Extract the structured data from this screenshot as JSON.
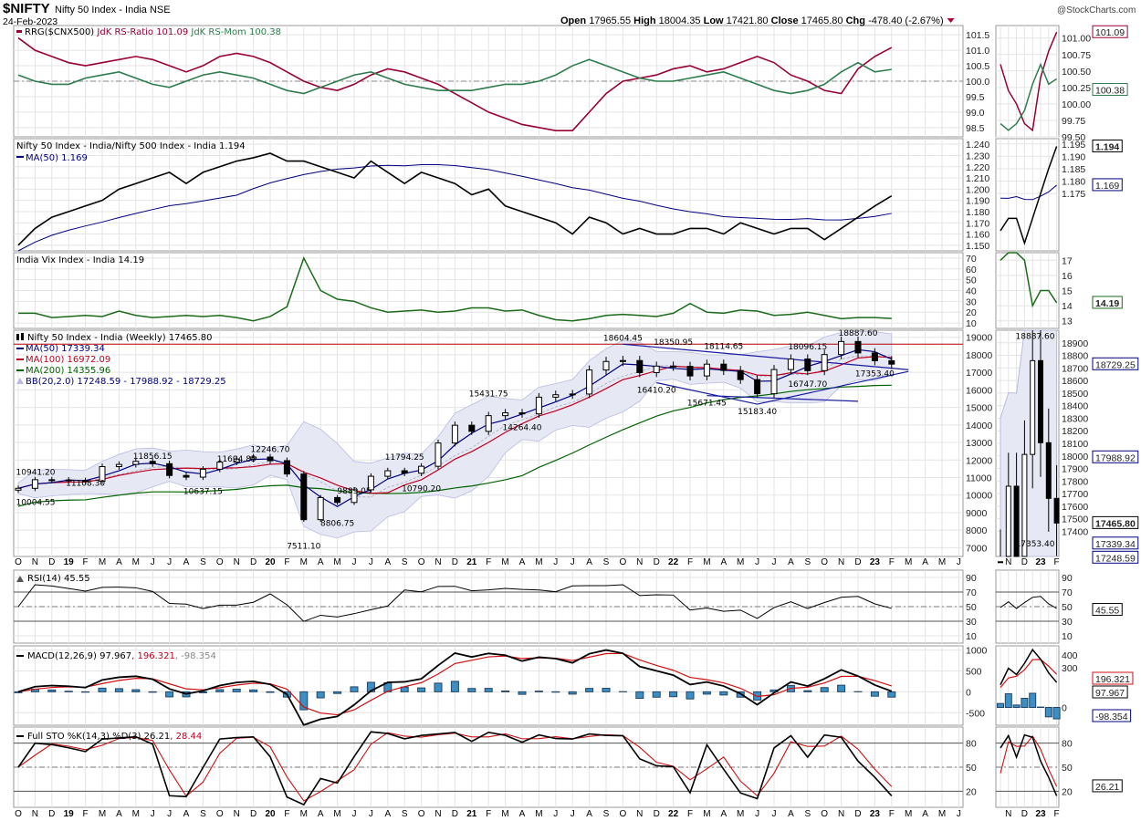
{
  "header": {
    "symbol": "$NIFTY",
    "name": "Nifty 50 Index - India NSE",
    "date": "24-Feb-2023",
    "watermark": "@StockCharts.com",
    "ohlc": {
      "open_label": "Open",
      "open": "17965.55",
      "high_label": "High",
      "high": "18004.35",
      "low_label": "Low",
      "low": "17421.80",
      "close_label": "Close",
      "close": "17465.80",
      "chg_label": "Chg",
      "chg": "-478.40 (-2.67%)"
    },
    "chg_icon": "down-triangle-icon"
  },
  "colors": {
    "price": "#000000",
    "ma50": "#000080",
    "ma100": "#c00020",
    "ma200": "#006400",
    "bb_fill": "#e6e8f4",
    "rrg_ratio": "#990033",
    "rrg_mom": "#2e7d4f",
    "vix": "#1a6b1a",
    "macd_hist": "#3b8fc4",
    "signal": "#d01010",
    "resistance": "#b00000",
    "trendline": "#1a1aa0"
  },
  "chart_data": [
    {
      "type": "line",
      "panel": "rrg",
      "legend": {
        "prefix": "RRG($CNX500)",
        "ratio": "JdK RS-Ratio 101.09",
        "mom": "JdK RS-Mom 100.38"
      },
      "ylim": [
        98.2,
        101.8
      ],
      "ticks": [
        "98.5",
        "99.0",
        "99.5",
        "100.0",
        "100.5",
        "101.0",
        "101.5"
      ],
      "mini_ticks": [
        "99.50",
        "99.75",
        "100.00",
        "100.25",
        "100.50",
        "100.75",
        "101.00"
      ],
      "tags": {
        "ratio": "101.09",
        "mom": "100.38"
      },
      "series": [
        {
          "name": "JdK RS-Ratio",
          "values": [
            101.4,
            101.0,
            100.8,
            100.6,
            100.5,
            100.6,
            100.7,
            100.8,
            100.7,
            100.5,
            100.3,
            100.5,
            100.8,
            100.9,
            100.8,
            100.6,
            100.3,
            100.0,
            99.8,
            99.7,
            99.9,
            100.2,
            100.4,
            100.3,
            100.1,
            99.9,
            99.6,
            99.3,
            99.0,
            98.8,
            98.6,
            98.5,
            98.4,
            98.4,
            99.0,
            99.6,
            100.0,
            100.1,
            100.2,
            100.4,
            100.5,
            100.3,
            100.4,
            100.6,
            100.8,
            100.6,
            100.2,
            100.0,
            99.7,
            99.6,
            100.4,
            100.8,
            101.09
          ]
        },
        {
          "name": "JdK RS-Mom",
          "values": [
            100.2,
            100.0,
            99.9,
            99.9,
            100.1,
            100.2,
            100.3,
            100.1,
            99.9,
            99.8,
            100.0,
            100.2,
            100.3,
            100.2,
            100.1,
            99.9,
            99.7,
            99.6,
            99.8,
            100.0,
            100.2,
            100.3,
            100.1,
            99.9,
            99.8,
            99.7,
            99.7,
            99.7,
            99.8,
            99.9,
            99.9,
            100.0,
            100.2,
            100.5,
            100.7,
            100.5,
            100.3,
            100.1,
            100.0,
            100.0,
            100.1,
            100.2,
            100.3,
            100.1,
            99.9,
            99.7,
            99.6,
            99.7,
            99.9,
            100.3,
            100.6,
            100.3,
            100.38
          ]
        }
      ]
    },
    {
      "type": "line",
      "panel": "ratio",
      "legend": {
        "main": "Nifty 50 Index - India/Nifty 500 Index - India 1.194",
        "ma": "MA(50) 1.169"
      },
      "ylim": [
        1.145,
        1.245
      ],
      "ticks": [
        "1.150",
        "1.160",
        "1.170",
        "1.180",
        "1.190",
        "1.200",
        "1.210",
        "1.220",
        "1.230",
        "1.240"
      ],
      "mini_ticks": [
        "1.175",
        "1.180",
        "1.185",
        "1.190",
        "1.195"
      ],
      "tags": {
        "main": "1.194",
        "ma": "1.169"
      },
      "series": [
        {
          "name": "Nifty 50 Index - India/Nifty 500 Index - India",
          "values": [
            1.15,
            1.165,
            1.175,
            1.18,
            1.185,
            1.19,
            1.2,
            1.205,
            1.21,
            1.215,
            1.205,
            1.215,
            1.22,
            1.225,
            1.228,
            1.232,
            1.225,
            1.225,
            1.22,
            1.215,
            1.21,
            1.225,
            1.215,
            1.205,
            1.215,
            1.21,
            1.205,
            1.195,
            1.2,
            1.185,
            1.18,
            1.175,
            1.17,
            1.16,
            1.175,
            1.17,
            1.16,
            1.165,
            1.16,
            1.16,
            1.165,
            1.165,
            1.16,
            1.17,
            1.165,
            1.16,
            1.165,
            1.165,
            1.155,
            1.165,
            1.175,
            1.185,
            1.194
          ]
        }
      ]
    },
    {
      "type": "line",
      "panel": "vix",
      "legend": {
        "main": "India Vix Index - India 14.19"
      },
      "ylim": [
        5,
        75
      ],
      "ticks": [
        "10",
        "20",
        "30",
        "40",
        "50",
        "60",
        "70"
      ],
      "mini_ticks": [
        "13",
        "14",
        "15",
        "16",
        "17"
      ],
      "tags": {
        "main": "14.19"
      },
      "series": [
        {
          "name": "India Vix Index - India",
          "values": [
            19,
            19,
            15,
            16,
            17,
            16,
            21,
            17,
            15,
            16,
            17,
            16,
            17,
            15,
            12,
            16,
            25,
            70,
            40,
            32,
            30,
            24,
            20,
            21,
            22,
            20,
            21,
            24,
            24,
            21,
            22,
            17,
            13,
            12,
            14,
            17,
            18,
            17,
            16,
            19,
            28,
            20,
            19,
            22,
            21,
            17,
            18,
            20,
            17,
            14,
            15,
            15,
            14.19
          ]
        }
      ]
    },
    {
      "type": "candlestick",
      "panel": "price",
      "legend": {
        "main": "Nifty 50 Index - India (Weekly) 17465.80",
        "ma50": "MA(50) 17339.34",
        "ma100": "MA(100) 16972.09",
        "ma200": "MA(200) 14355.96",
        "bb": "BB(20,2.0) 17248.59 - 17988.92 - 18729.25"
      },
      "ylim": [
        6500,
        19400
      ],
      "ticks": [
        "7000",
        "8000",
        "9000",
        "10000",
        "11000",
        "12000",
        "13000",
        "14000",
        "15000",
        "16000",
        "17000",
        "18000",
        "19000"
      ],
      "mini_ticks": [
        "17400",
        "17500",
        "17600",
        "17700",
        "17800",
        "17900",
        "18000",
        "18100",
        "18200",
        "18300",
        "18400",
        "18500",
        "18600",
        "18700",
        "18800",
        "18900"
      ],
      "tags": {
        "close": "17465.80",
        "bb_upper": "18729.25",
        "bb_mid": "17988.92",
        "ma50": "17339.34",
        "bb_lower": "17248.59"
      },
      "mini_annotations": [
        {
          "label": "18887.60",
          "value": 18887.6,
          "date": "2022-12"
        },
        {
          "label": "17353.40",
          "value": 17353.4,
          "date": "2023-01"
        }
      ],
      "dates": [
        "2018-10",
        "2018-11",
        "2018-12",
        "2019-01",
        "2019-02",
        "2019-03",
        "2019-04",
        "2019-05",
        "2019-06",
        "2019-07",
        "2019-08",
        "2019-09",
        "2019-10",
        "2019-11",
        "2019-12",
        "2020-01",
        "2020-02",
        "2020-03",
        "2020-04",
        "2020-05",
        "2020-06",
        "2020-07",
        "2020-08",
        "2020-09",
        "2020-10",
        "2020-11",
        "2020-12",
        "2021-01",
        "2021-02",
        "2021-03",
        "2021-04",
        "2021-05",
        "2021-06",
        "2021-07",
        "2021-08",
        "2021-09",
        "2021-10",
        "2021-11",
        "2021-12",
        "2022-01",
        "2022-02",
        "2022-03",
        "2022-04",
        "2022-05",
        "2022-06",
        "2022-07",
        "2022-08",
        "2022-09",
        "2022-10",
        "2022-11",
        "2022-12",
        "2023-01",
        "2023-02"
      ],
      "close": [
        10386,
        10876,
        10862,
        10830,
        10792,
        11623,
        11748,
        11923,
        11789,
        11118,
        11023,
        11474,
        11877,
        12056,
        12168,
        11962,
        11202,
        8598,
        9860,
        9580,
        10302,
        11073,
        11388,
        11248,
        11642,
        12969,
        13982,
        13635,
        14529,
        14691,
        14631,
        15583,
        15722,
        15763,
        17132,
        17618,
        17672,
        16983,
        17354,
        17340,
        16794,
        17465,
        17103,
        16585,
        15780,
        17158,
        17759,
        17094,
        18012,
        18758,
        18105,
        17662,
        17465.8
      ],
      "resistance": 18604.45,
      "trendlines": [
        [
          [
            "2021-10",
            18604.45
          ],
          [
            "2023-03",
            17150
          ]
        ],
        [
          [
            "2022-03",
            15671.45
          ],
          [
            "2022-12",
            15350
          ]
        ],
        [
          [
            "2021-12",
            16410.2
          ],
          [
            "2022-06",
            15183.4
          ]
        ],
        [
          [
            "2022-06",
            15183.4
          ],
          [
            "2023-03",
            17050
          ]
        ]
      ],
      "annotations": [
        {
          "label": "10004.55",
          "value": 10004.55,
          "date": "2018-10",
          "pos": "below"
        },
        {
          "label": "10941.20",
          "value": 10941.2,
          "date": "2018-11",
          "pos": "above"
        },
        {
          "label": "11108.30",
          "value": 11108.3,
          "date": "2019-02",
          "pos": "below"
        },
        {
          "label": "11856.15",
          "value": 11856.15,
          "date": "2019-06",
          "pos": "above"
        },
        {
          "label": "10637.15",
          "value": 10637.15,
          "date": "2019-09",
          "pos": "below"
        },
        {
          "label": "11694.85",
          "value": 11694.85,
          "date": "2019-11",
          "pos": "above"
        },
        {
          "label": "12246.70",
          "value": 12246.7,
          "date": "2020-01",
          "pos": "above"
        },
        {
          "label": "9889.05",
          "value": 9889.05,
          "date": "2020-06",
          "pos": "above"
        },
        {
          "label": "8806.75",
          "value": 8806.75,
          "date": "2020-05",
          "pos": "below"
        },
        {
          "label": "7511.10",
          "value": 7511.1,
          "date": "2020-03",
          "pos": "below"
        },
        {
          "label": "11794.25",
          "value": 11794.25,
          "date": "2020-09",
          "pos": "above"
        },
        {
          "label": "10790.20",
          "value": 10790.2,
          "date": "2020-10",
          "pos": "below"
        },
        {
          "label": "15431.75",
          "value": 15431.75,
          "date": "2021-02",
          "pos": "above"
        },
        {
          "label": "14264.40",
          "value": 14264.4,
          "date": "2021-04",
          "pos": "below"
        },
        {
          "label": "18604.45",
          "value": 18604.45,
          "date": "2021-10",
          "pos": "above"
        },
        {
          "label": "18350.95",
          "value": 18350.95,
          "date": "2022-01",
          "pos": "above"
        },
        {
          "label": "18114.65",
          "value": 18114.65,
          "date": "2022-04",
          "pos": "above"
        },
        {
          "label": "16410.20",
          "value": 16410.2,
          "date": "2021-12",
          "pos": "below"
        },
        {
          "label": "15671.45",
          "value": 15671.45,
          "date": "2022-03",
          "pos": "below"
        },
        {
          "label": "15183.40",
          "value": 15183.4,
          "date": "2022-06",
          "pos": "below"
        },
        {
          "label": "18096.15",
          "value": 18096.15,
          "date": "2022-09",
          "pos": "above"
        },
        {
          "label": "16747.70",
          "value": 16747.7,
          "date": "2022-09",
          "pos": "below"
        },
        {
          "label": "18887.60",
          "value": 18887.6,
          "date": "2022-12",
          "pos": "above"
        },
        {
          "label": "17353.40",
          "value": 17353.4,
          "date": "2023-01",
          "pos": "below"
        }
      ]
    },
    {
      "type": "line",
      "panel": "rsi",
      "legend": {
        "main": "RSI(14) 45.55"
      },
      "ylim": [
        0,
        100
      ],
      "ticks": [
        "10",
        "30",
        "50",
        "70",
        "90"
      ],
      "tags": {
        "main": "45.55"
      }
    },
    {
      "type": "line",
      "panel": "macd",
      "legend": {
        "macd": "MACD(12,26,9) 97.967",
        "signal": ", 196.321",
        "hist": ", -98.354"
      },
      "ylim": [
        -800,
        1100
      ],
      "ticks": [
        "-500",
        "0",
        "500",
        "1000"
      ],
      "mini_ticks": [
        "0",
        "300",
        "400"
      ],
      "tags": {
        "macd": "97.967",
        "signal": "196.321",
        "hist": "-98.354"
      }
    },
    {
      "type": "line",
      "panel": "sto",
      "legend": {
        "k": "Full STO %K(14,3) %D(3) 26.21",
        "d": ", 28.44"
      },
      "ylim": [
        0,
        100
      ],
      "ticks": [
        "20",
        "50",
        "80"
      ],
      "tags": {
        "k": "26.21"
      }
    }
  ],
  "x_axis": {
    "labels": [
      "O",
      "N",
      "D",
      "19",
      "F",
      "M",
      "A",
      "M",
      "J",
      "J",
      "A",
      "S",
      "O",
      "N",
      "D",
      "20",
      "F",
      "M",
      "A",
      "M",
      "J",
      "J",
      "A",
      "S",
      "O",
      "N",
      "D",
      "21",
      "F",
      "M",
      "A",
      "M",
      "J",
      "J",
      "A",
      "S",
      "O",
      "N",
      "D",
      "22",
      "F",
      "M",
      "A",
      "M",
      "J",
      "J",
      "A",
      "S",
      "O",
      "N",
      "D",
      "23",
      "F",
      "M",
      "A",
      "M",
      "J"
    ],
    "mini_labels": [
      "N",
      "D",
      "23",
      "F"
    ]
  }
}
